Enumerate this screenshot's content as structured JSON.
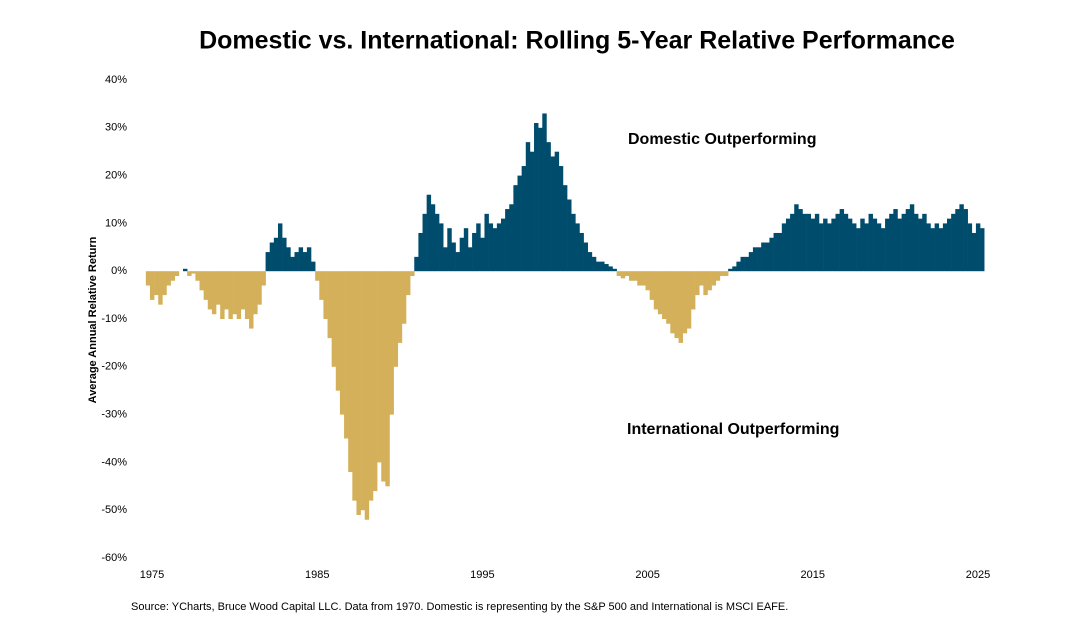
{
  "chart_data": {
    "type": "bar",
    "title": "Domestic vs. International: Rolling 5-Year Relative Performance",
    "y_label": "Average Annual Relative Return",
    "annotations": [
      "Domestic Outperforming",
      "International Outperforming"
    ],
    "source": "Source: YCharts, Bruce Wood Capital LLC. Data from 1970.  Domestic is representing by the S&P 500 and International is MSCI EAFE.",
    "positive_color": "#004c6d",
    "negative_color": "#d4b05a",
    "xlim": [
      1974,
      2026
    ],
    "xticks": [
      1975,
      1985,
      1995,
      2005,
      2015,
      2025
    ],
    "ylim": [
      -60,
      40
    ],
    "yticks": [
      {
        "value": -60,
        "label": "-60%"
      },
      {
        "value": -50,
        "label": "-50%"
      },
      {
        "value": -40,
        "label": "-40%"
      },
      {
        "value": -30,
        "label": "-30%"
      },
      {
        "value": -20,
        "label": "-20%"
      },
      {
        "value": -10,
        "label": "-10%"
      },
      {
        "value": 0,
        "label": "0%"
      },
      {
        "value": 10,
        "label": "10%"
      },
      {
        "value": 20,
        "label": "20%"
      },
      {
        "value": 30,
        "label": "30%"
      },
      {
        "value": 40,
        "label": "40%"
      }
    ],
    "x": [
      1974.75,
      1975,
      1975.25,
      1975.5,
      1975.75,
      1976,
      1976.25,
      1976.5,
      1976.75,
      1977,
      1977.25,
      1977.5,
      1977.75,
      1978,
      1978.25,
      1978.5,
      1978.75,
      1979,
      1979.25,
      1979.5,
      1979.75,
      1980,
      1980.25,
      1980.5,
      1980.75,
      1981,
      1981.25,
      1981.5,
      1981.75,
      1982,
      1982.25,
      1982.5,
      1982.75,
      1983,
      1983.25,
      1983.5,
      1983.75,
      1984,
      1984.25,
      1984.5,
      1984.75,
      1985,
      1985.25,
      1985.5,
      1985.75,
      1986,
      1986.25,
      1986.5,
      1986.75,
      1987,
      1987.25,
      1987.5,
      1987.75,
      1988,
      1988.25,
      1988.5,
      1988.75,
      1989,
      1989.25,
      1989.5,
      1989.75,
      1990,
      1990.25,
      1990.5,
      1990.75,
      1991,
      1991.25,
      1991.5,
      1991.75,
      1992,
      1992.25,
      1992.5,
      1992.75,
      1993,
      1993.25,
      1993.5,
      1993.75,
      1994,
      1994.25,
      1994.5,
      1994.75,
      1995,
      1995.25,
      1995.5,
      1995.75,
      1996,
      1996.25,
      1996.5,
      1996.75,
      1997,
      1997.25,
      1997.5,
      1997.75,
      1998,
      1998.25,
      1998.5,
      1998.75,
      1999,
      1999.25,
      1999.5,
      1999.75,
      2000,
      2000.25,
      2000.5,
      2000.75,
      2001,
      2001.25,
      2001.5,
      2001.75,
      2002,
      2002.25,
      2002.5,
      2002.75,
      2003,
      2003.25,
      2003.5,
      2003.75,
      2004,
      2004.25,
      2004.5,
      2004.75,
      2005,
      2005.25,
      2005.5,
      2005.75,
      2006,
      2006.25,
      2006.5,
      2006.75,
      2007,
      2007.25,
      2007.5,
      2007.75,
      2008,
      2008.25,
      2008.5,
      2008.75,
      2009,
      2009.25,
      2009.5,
      2009.75,
      2010,
      2010.25,
      2010.5,
      2010.75,
      2011,
      2011.25,
      2011.5,
      2011.75,
      2012,
      2012.25,
      2012.5,
      2012.75,
      2013,
      2013.25,
      2013.5,
      2013.75,
      2014,
      2014.25,
      2014.5,
      2014.75,
      2015,
      2015.25,
      2015.5,
      2015.75,
      2016,
      2016.25,
      2016.5,
      2016.75,
      2017,
      2017.25,
      2017.5,
      2017.75,
      2018,
      2018.25,
      2018.5,
      2018.75,
      2019,
      2019.25,
      2019.5,
      2019.75,
      2020,
      2020.25,
      2020.5,
      2020.75,
      2021,
      2021.25,
      2021.5,
      2021.75,
      2022,
      2022.25,
      2022.5,
      2022.75,
      2023,
      2023.25,
      2023.5,
      2023.75,
      2024,
      2024.25,
      2024.5,
      2024.75,
      2025,
      2025.25
    ],
    "values": [
      -3,
      -6,
      -5,
      -7,
      -5,
      -3,
      -2,
      -1,
      0,
      0.5,
      -1,
      -0.5,
      -2,
      -4,
      -6,
      -8,
      -9,
      -7,
      -10,
      -8,
      -10,
      -9,
      -10,
      -8,
      -10,
      -12,
      -9,
      -7,
      -3,
      4,
      6,
      7,
      10,
      7,
      5,
      3,
      4,
      5,
      4,
      5,
      2,
      -2,
      -6,
      -10,
      -14,
      -20,
      -25,
      -30,
      -35,
      -42,
      -48,
      -51,
      -50,
      -52,
      -48,
      -46,
      -40,
      -44,
      -45,
      -30,
      -20,
      -15,
      -11,
      -5,
      -1,
      3,
      8,
      12,
      16,
      14,
      12,
      10,
      5,
      9,
      6,
      4,
      7,
      9,
      5,
      8,
      10,
      7,
      12,
      10,
      9,
      10,
      11,
      13,
      14,
      18,
      20,
      22,
      27,
      25,
      31,
      30,
      33,
      27,
      24,
      25,
      22,
      18,
      15,
      12,
      10,
      8,
      6,
      4,
      3,
      2,
      2,
      1.5,
      1,
      0.5,
      -1,
      -1.5,
      -1,
      -2,
      -2,
      -3,
      -3,
      -4,
      -6,
      -8,
      -9,
      -10,
      -11,
      -13,
      -14,
      -15,
      -13,
      -12,
      -8,
      -5,
      -3,
      -5,
      -4,
      -3,
      -2,
      -1,
      -1,
      0.5,
      1,
      2,
      3,
      3,
      4,
      5,
      5,
      6,
      6,
      7,
      8,
      8,
      10,
      11,
      12,
      14,
      13,
      12,
      12,
      11,
      12,
      10,
      11,
      10,
      11,
      12,
      13,
      12,
      11,
      10,
      9,
      11,
      10,
      12,
      11,
      10,
      9,
      11,
      12,
      13,
      11,
      12,
      13,
      14,
      12,
      11,
      12,
      10,
      9,
      10,
      9,
      10,
      11,
      12,
      13,
      14,
      13,
      10,
      8,
      10,
      9
    ]
  }
}
